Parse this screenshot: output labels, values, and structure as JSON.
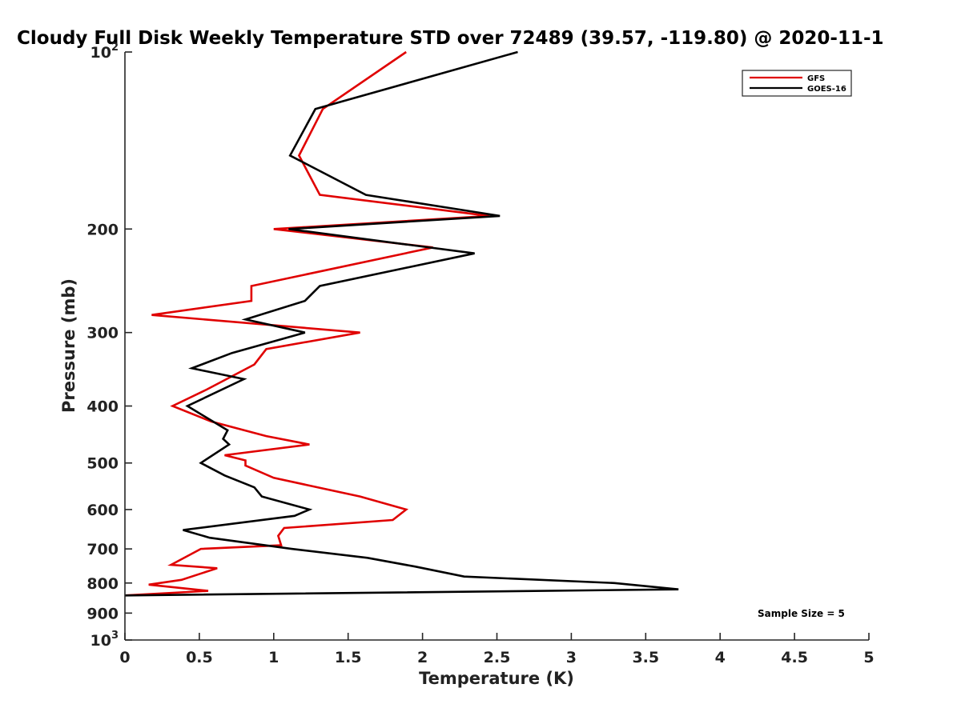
{
  "chart_data": {
    "type": "line",
    "title": "Cloudy Full Disk Weekly Temperature STD over 72489 (39.57, -119.80) @ 2020-11-1",
    "xlabel": "Temperature (K)",
    "ylabel": "Pressure (mb)",
    "xlim": [
      0,
      5
    ],
    "ylim": [
      100,
      1000
    ],
    "y_scale": "log",
    "y_reversed": true,
    "x_ticks": [
      "0",
      "0.5",
      "1",
      "1.5",
      "2",
      "2.5",
      "3",
      "3.5",
      "4",
      "4.5",
      "5"
    ],
    "y_ticks": [
      {
        "value": 100,
        "base": "10",
        "exp": "2"
      },
      {
        "value": 200,
        "label": "200"
      },
      {
        "value": 300,
        "label": "300"
      },
      {
        "value": 400,
        "label": "400"
      },
      {
        "value": 500,
        "label": "500"
      },
      {
        "value": 600,
        "label": "600"
      },
      {
        "value": 700,
        "label": "700"
      },
      {
        "value": 800,
        "label": "800"
      },
      {
        "value": 900,
        "label": "900"
      },
      {
        "value": 1000,
        "base": "10",
        "exp": "3"
      }
    ],
    "legend_position": "top-right",
    "annotation": "Sample Size = 5",
    "series": [
      {
        "name": "GFS",
        "color": "#e00000",
        "points": [
          [
            1.89,
            100
          ],
          [
            1.33,
            125
          ],
          [
            1.17,
            150
          ],
          [
            1.31,
            175
          ],
          [
            2.45,
            190
          ],
          [
            1.0,
            200
          ],
          [
            2.07,
            215
          ],
          [
            0.85,
            250
          ],
          [
            0.85,
            265
          ],
          [
            0.18,
            280
          ],
          [
            1.58,
            300
          ],
          [
            0.95,
            320
          ],
          [
            0.87,
            340
          ],
          [
            0.55,
            375
          ],
          [
            0.32,
            400
          ],
          [
            0.58,
            425
          ],
          [
            0.95,
            450
          ],
          [
            1.24,
            465
          ],
          [
            0.67,
            485
          ],
          [
            0.81,
            495
          ],
          [
            0.81,
            505
          ],
          [
            1.0,
            530
          ],
          [
            1.58,
            570
          ],
          [
            1.89,
            600
          ],
          [
            1.8,
            625
          ],
          [
            1.07,
            645
          ],
          [
            1.03,
            665
          ],
          [
            1.05,
            690
          ],
          [
            0.51,
            700
          ],
          [
            0.31,
            745
          ],
          [
            0.62,
            755
          ],
          [
            0.38,
            790
          ],
          [
            0.16,
            805
          ],
          [
            0.56,
            825
          ],
          [
            0.0,
            840
          ]
        ]
      },
      {
        "name": "GOES-16",
        "color": "#000000",
        "points": [
          [
            2.64,
            100
          ],
          [
            1.28,
            125
          ],
          [
            1.11,
            150
          ],
          [
            1.62,
            175
          ],
          [
            2.52,
            190
          ],
          [
            1.1,
            200
          ],
          [
            2.35,
            220
          ],
          [
            1.31,
            250
          ],
          [
            1.21,
            265
          ],
          [
            0.81,
            285
          ],
          [
            1.21,
            300
          ],
          [
            0.72,
            325
          ],
          [
            0.45,
            345
          ],
          [
            0.8,
            360
          ],
          [
            0.42,
            400
          ],
          [
            0.69,
            440
          ],
          [
            0.66,
            455
          ],
          [
            0.7,
            465
          ],
          [
            0.51,
            500
          ],
          [
            0.67,
            525
          ],
          [
            0.87,
            550
          ],
          [
            0.92,
            570
          ],
          [
            1.24,
            600
          ],
          [
            1.14,
            615
          ],
          [
            0.39,
            650
          ],
          [
            0.57,
            670
          ],
          [
            1.12,
            700
          ],
          [
            1.63,
            725
          ],
          [
            1.95,
            750
          ],
          [
            2.28,
            780
          ],
          [
            3.29,
            800
          ],
          [
            3.72,
            820
          ],
          [
            0.0,
            840
          ]
        ]
      }
    ]
  }
}
